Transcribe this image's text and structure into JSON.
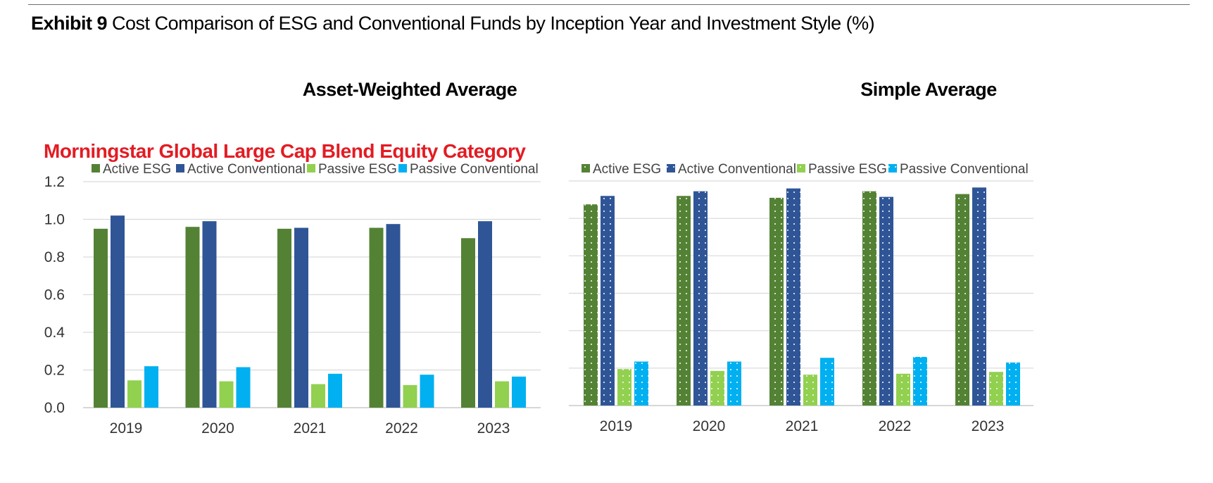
{
  "header": {
    "exhibit_label": "Exhibit 9",
    "title": "Cost Comparison of ESG and Conventional Funds by Inception Year and Investment Style (%)"
  },
  "panels": {
    "left_title": "Asset-Weighted Average",
    "right_title": "Simple Average"
  },
  "category_title": "Morningstar Global Large Cap Blend Equity Category",
  "colors": {
    "active_esg": "#548235",
    "active_conventional": "#2f5597",
    "passive_esg": "#92d050",
    "passive_conventional": "#00b0f0",
    "gridline": "#d9d9d9"
  },
  "chart_data": [
    {
      "type": "bar",
      "title": "Asset-Weighted Average",
      "categories": [
        "2019",
        "2020",
        "2021",
        "2022",
        "2023"
      ],
      "series": [
        {
          "name": "Active ESG",
          "values": [
            0.95,
            0.96,
            0.95,
            0.955,
            0.9
          ]
        },
        {
          "name": "Active Conventional",
          "values": [
            1.02,
            0.99,
            0.955,
            0.975,
            0.99
          ]
        },
        {
          "name": "Passive ESG",
          "values": [
            0.145,
            0.14,
            0.125,
            0.12,
            0.14
          ]
        },
        {
          "name": "Passive Conventional",
          "values": [
            0.22,
            0.215,
            0.18,
            0.175,
            0.165
          ]
        }
      ],
      "ylim": [
        0,
        1.2
      ],
      "yticks": [
        "0.0",
        "0.2",
        "0.4",
        "0.6",
        "0.8",
        "1.0",
        "1.2"
      ],
      "grid": true,
      "legend": "top",
      "pattern": "solid"
    },
    {
      "type": "bar",
      "title": "Simple Average",
      "categories": [
        "2019",
        "2020",
        "2021",
        "2022",
        "2023"
      ],
      "series": [
        {
          "name": "Active ESG",
          "values": [
            1.075,
            1.12,
            1.11,
            1.145,
            1.13
          ]
        },
        {
          "name": "Active Conventional",
          "values": [
            1.12,
            1.145,
            1.16,
            1.115,
            1.165
          ]
        },
        {
          "name": "Passive ESG",
          "values": [
            0.195,
            0.185,
            0.165,
            0.17,
            0.18
          ]
        },
        {
          "name": "Passive Conventional",
          "values": [
            0.235,
            0.235,
            0.255,
            0.26,
            0.23
          ]
        }
      ],
      "ylim": [
        0,
        1.2
      ],
      "yticks": [],
      "grid": true,
      "legend": "top",
      "pattern": "dotted"
    }
  ]
}
